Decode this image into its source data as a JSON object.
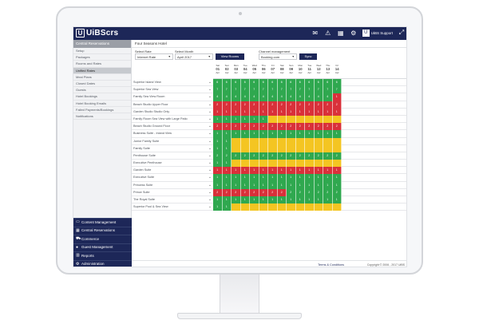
{
  "app": {
    "logo_letter": "U",
    "logo_text": "UiBScrs",
    "user_label": "UiBS Support",
    "user_letter": "U"
  },
  "icons": [
    "mail-icon",
    "alert-icon",
    "calendar-icon",
    "gear-icon",
    "user-icon",
    "fullscreen-icon"
  ],
  "colors": {
    "navy": "#1d2758",
    "available": "#2fa84f",
    "low": "#f4c522",
    "sold_out": "#d9303a"
  },
  "sidebar": {
    "header": "Central Reservations",
    "items": [
      {
        "label": "Setup"
      },
      {
        "label": "Packages"
      },
      {
        "label": "Rooms and Rates"
      },
      {
        "label": "Unified Rates",
        "active": true
      },
      {
        "label": "Meal Plans"
      },
      {
        "label": "Closed Dates"
      },
      {
        "label": "Guests"
      },
      {
        "label": "Hotel Bookings"
      },
      {
        "label": "Hotel Booking Emails"
      },
      {
        "label": "Failed Payments/Bookings"
      },
      {
        "label": "Notifications"
      }
    ],
    "modules": [
      {
        "label": "Content Management",
        "icon": "monitor-icon"
      },
      {
        "label": "Central Reservations",
        "icon": "calendar-icon"
      },
      {
        "label": "Commerce",
        "icon": "cart-icon"
      },
      {
        "label": "Guest Management",
        "icon": "user-icon"
      },
      {
        "label": "Reports",
        "icon": "chart-icon"
      },
      {
        "label": "Administration",
        "icon": "gear-icon"
      }
    ]
  },
  "main": {
    "hotel_name": "Four Seasons Hotel",
    "filters": {
      "rate_label": "Select Rate",
      "rate_value": "Internet Rate",
      "month_label": "Select Month",
      "month_value": "April 2017",
      "view_button": "View Rooms",
      "channel_label": "Channel management",
      "channel_value": "Booking.com",
      "sync_button": "Sync"
    },
    "dates": [
      {
        "day": "Sat",
        "date": "01",
        "month": "Apr"
      },
      {
        "day": "Sun",
        "date": "02",
        "month": "Apr"
      },
      {
        "day": "Mon",
        "date": "03",
        "month": "Apr"
      },
      {
        "day": "Tue",
        "date": "04",
        "month": "Apr"
      },
      {
        "day": "Wed",
        "date": "05",
        "month": "Apr"
      },
      {
        "day": "Thu",
        "date": "06",
        "month": "Apr"
      },
      {
        "day": "Fri",
        "date": "07",
        "month": "Apr"
      },
      {
        "day": "Sat",
        "date": "08",
        "month": "Apr"
      },
      {
        "day": "Sun",
        "date": "09",
        "month": "Apr"
      },
      {
        "day": "Mon",
        "date": "10",
        "month": "Apr"
      },
      {
        "day": "Tue",
        "date": "11",
        "month": "Apr"
      },
      {
        "day": "Wed",
        "date": "12",
        "month": "Apr"
      },
      {
        "day": "Thu",
        "date": "13",
        "month": "Apr"
      },
      {
        "day": "Fri",
        "date": "14",
        "month": "Apr"
      }
    ],
    "rooms": [
      {
        "name": "Superior Island View",
        "cells": [
          "g:6",
          "g:6",
          "g:6",
          "g:6",
          "g:6",
          "g:6",
          "g:6",
          "g:6",
          "g:6",
          "g:6",
          "g:6",
          "g:6",
          "g:6",
          "g:6"
        ]
      },
      {
        "name": "Superior Sea View",
        "cells": [
          "g:7",
          "g:7",
          "g:7",
          "g:7",
          "g:7",
          "g:7",
          "g:7",
          "g:7",
          "g:7",
          "g:7",
          "g:7",
          "g:7",
          "g:7",
          "g:7"
        ]
      },
      {
        "name": "Family Sea View Room",
        "cells": [
          "g:4",
          "g:4",
          "g:4",
          "g:4",
          "g:4",
          "g:4",
          "g:4",
          "g:4",
          "g:4",
          "g:4",
          "g:4",
          "g:4",
          "g:4",
          "r:1"
        ]
      },
      {
        "name": "Beach Studio Upper Floor",
        "cells": [
          "r:2",
          "r:2",
          "r:2",
          "r:2",
          "r:2",
          "r:2",
          "r:2",
          "r:2",
          "r:2",
          "r:2",
          "r:2",
          "r:2",
          "r:2",
          "r:2"
        ]
      },
      {
        "name": "Garden Studio Studio Only",
        "cells": [
          "r:1",
          "r:1",
          "r:1",
          "r:1",
          "r:1",
          "r:1",
          "r:1",
          "r:1",
          "r:1",
          "r:1",
          "r:1",
          "r:1",
          "r:1",
          "r:1"
        ]
      },
      {
        "name": "Family Room Sea View with Large Patio",
        "cells": [
          "g:1",
          "g:1",
          "g:1",
          "g:1",
          "g:1",
          "g:1",
          "y:",
          "y:",
          "y:",
          "y:",
          "y:",
          "y:",
          "y:",
          "y:"
        ]
      },
      {
        "name": "Beach Studio Ground Floor",
        "cells": [
          "r:2",
          "r:2",
          "r:2",
          "r:2",
          "r:2",
          "r:2",
          "r:2",
          "r:2",
          "r:2",
          "r:2",
          "r:2",
          "r:2",
          "r:2",
          "r:2"
        ]
      },
      {
        "name": "Business Suite - Inland View",
        "cells": [
          "g:1",
          "g:1",
          "g:1",
          "g:1",
          "g:1",
          "g:1",
          "g:1",
          "g:1",
          "g:1",
          "g:1",
          "g:1",
          "g:1",
          "g:1",
          "g:1"
        ]
      },
      {
        "name": "Junior Family Suite",
        "cells": [
          "g:1",
          "g:1",
          "y:",
          "y:",
          "y:",
          "y:",
          "y:",
          "y:",
          "y:",
          "y:",
          "y:",
          "y:",
          "y:",
          "y:"
        ]
      },
      {
        "name": "Family Suite",
        "cells": [
          "g:1",
          "g:1",
          "y:",
          "y:",
          "y:",
          "y:",
          "y:",
          "y:",
          "y:",
          "y:",
          "y:",
          "y:",
          "y:",
          "y:"
        ]
      },
      {
        "name": "Penthouse Suite",
        "cells": [
          "g:2",
          "g:2",
          "g:2",
          "g:2",
          "g:2",
          "g:2",
          "g:2",
          "g:2",
          "g:2",
          "g:2",
          "g:2",
          "g:2",
          "g:2",
          "g:2"
        ]
      },
      {
        "name": "Executive Penthouse",
        "cells": [
          "g:1",
          "g:1",
          "y:",
          "y:",
          "y:",
          "y:",
          "y:",
          "y:",
          "y:",
          "y:",
          "y:",
          "y:",
          "y:",
          "y:"
        ]
      },
      {
        "name": "Garden Suite",
        "cells": [
          "r:1",
          "r:1",
          "r:1",
          "r:1",
          "r:1",
          "r:1",
          "r:1",
          "r:1",
          "r:1",
          "r:1",
          "r:1",
          "r:1",
          "r:1",
          "r:1"
        ]
      },
      {
        "name": "Executive Suite",
        "cells": [
          "g:1",
          "g:1",
          "g:1",
          "g:1",
          "g:1",
          "g:1",
          "g:1",
          "g:1",
          "g:1",
          "g:1",
          "g:1",
          "g:1",
          "g:1",
          "g:1"
        ]
      },
      {
        "name": "Princess Suite",
        "cells": [
          "g:1",
          "g:1",
          "g:1",
          "g:1",
          "g:1",
          "g:1",
          "g:1",
          "g:1",
          "g:1",
          "g:1",
          "g:1",
          "g:1",
          "g:1",
          "g:1"
        ]
      },
      {
        "name": "Prince Suite",
        "cells": [
          "r:2",
          "r:2",
          "r:2",
          "r:2",
          "r:2",
          "r:2",
          "r:2",
          "r:2",
          "g:2",
          "g:2",
          "g:2",
          "g:2",
          "g:2",
          "g:2"
        ]
      },
      {
        "name": "The Royal Suite",
        "cells": [
          "g:1",
          "g:1",
          "g:1",
          "g:1",
          "g:1",
          "g:1",
          "g:1",
          "g:1",
          "g:1",
          "g:1",
          "g:1",
          "g:1",
          "g:1",
          "g:1"
        ]
      },
      {
        "name": "Superior Pool & Sea View",
        "cells": [
          "g:1",
          "g:1",
          "y:",
          "y:",
          "y:",
          "y:",
          "y:",
          "y:",
          "y:",
          "y:",
          "y:",
          "y:",
          "y:",
          "y:"
        ]
      }
    ],
    "footer": {
      "terms": "Terms & Conditions",
      "copyright": "Copyright © 2006 - 2017 UiBS"
    }
  }
}
